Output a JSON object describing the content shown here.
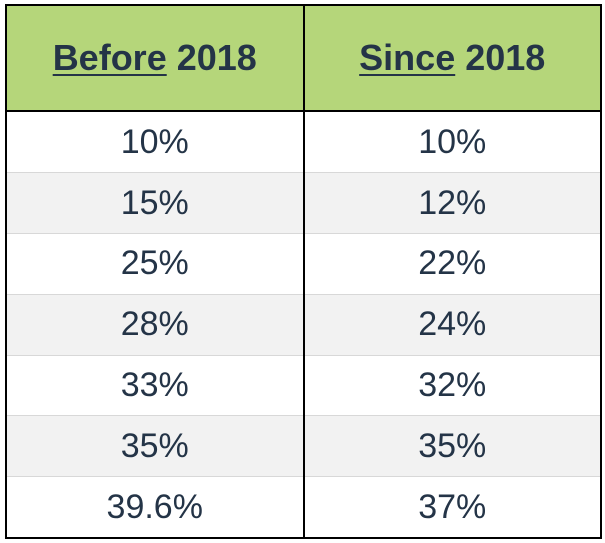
{
  "table": {
    "header": {
      "col1_underlined": "Before",
      "col1_rest": " 2018",
      "col2_underlined": "Since",
      "col2_rest": " 2018"
    },
    "rows": [
      {
        "before": "10%",
        "since": "10%"
      },
      {
        "before": "15%",
        "since": "12%"
      },
      {
        "before": "25%",
        "since": "22%"
      },
      {
        "before": "28%",
        "since": "24%"
      },
      {
        "before": "33%",
        "since": "32%"
      },
      {
        "before": "35%",
        "since": "35%"
      },
      {
        "before": "39.6%",
        "since": "37%"
      }
    ],
    "colors": {
      "header_bg": "#b5d67a",
      "alt_row_bg": "#f2f2f2",
      "text": "#243447"
    }
  }
}
